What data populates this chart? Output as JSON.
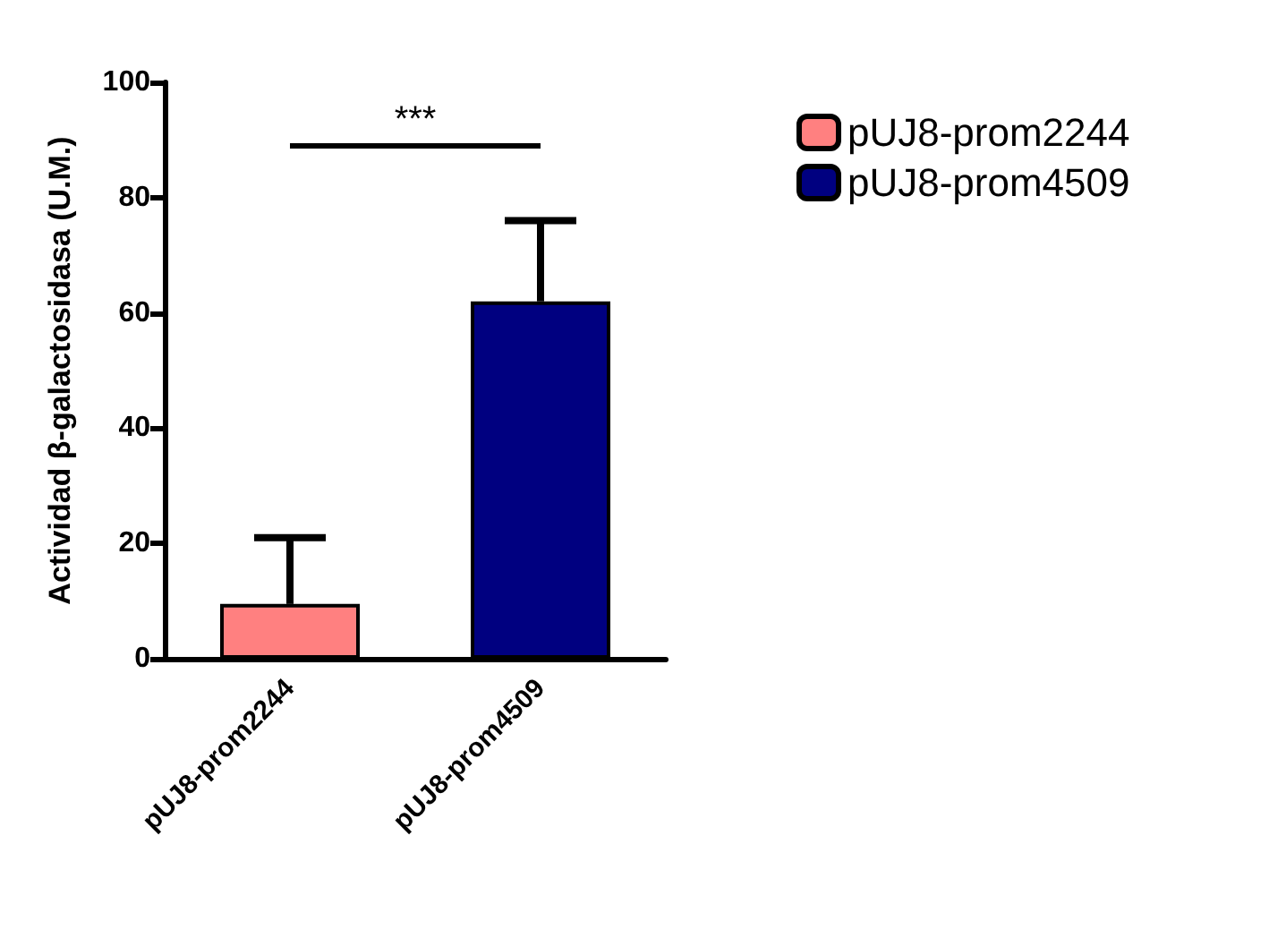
{
  "chart_data": {
    "type": "bar",
    "ylabel": "Actividad β-galactosidasa (U.M.)",
    "categories": [
      "pUJ8-prom2244",
      "pUJ8-prom4509"
    ],
    "series": [
      {
        "name": "pUJ8-prom2244",
        "color": "#ff8080",
        "values": [
          9.5,
          null
        ],
        "errors": [
          [
            9.5,
            21
          ],
          null
        ]
      },
      {
        "name": "pUJ8-prom4509",
        "color": "#000080",
        "values": [
          null,
          62
        ],
        "errors": [
          null,
          [
            62,
            76
          ]
        ]
      }
    ],
    "ylim": [
      0,
      100
    ],
    "yticks": [
      0,
      20,
      40,
      60,
      80,
      100
    ],
    "grid": false,
    "legend": "top right",
    "annotations": [
      "***"
    ]
  }
}
